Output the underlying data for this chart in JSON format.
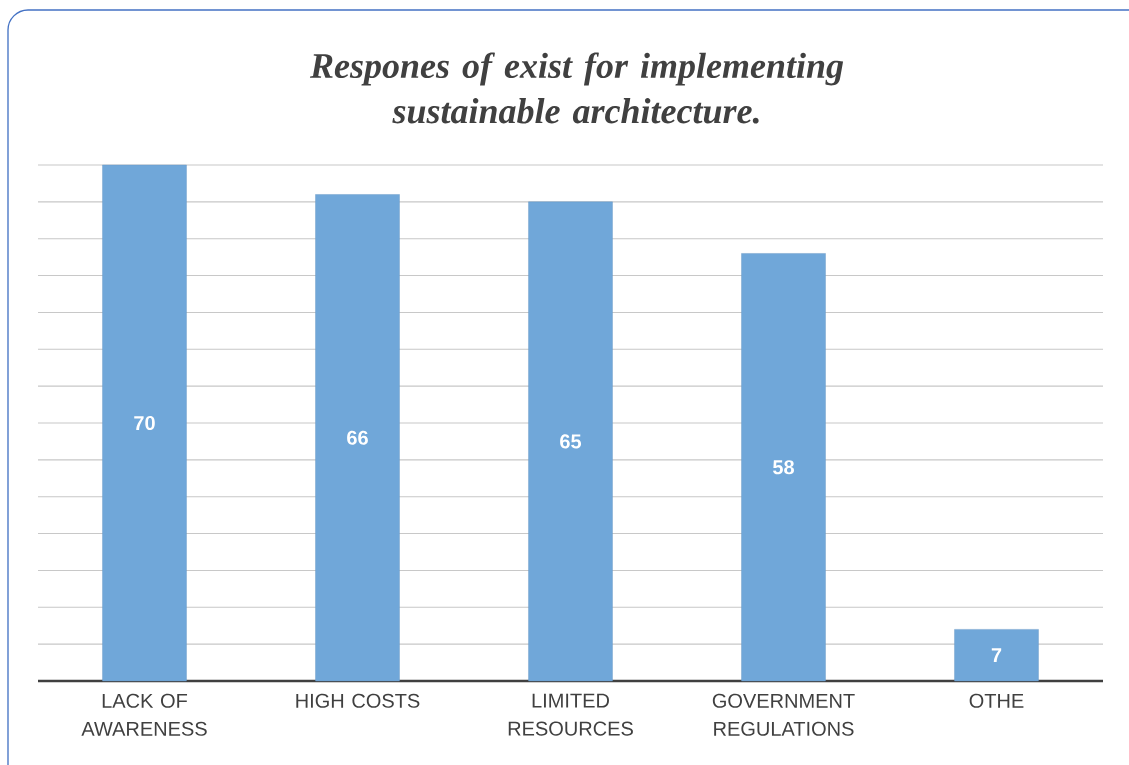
{
  "chart_data": {
    "type": "bar",
    "title": "Respones of exist for implementing sustainable architecture.",
    "categories": [
      "LACK OF AWARENESS",
      "HIGH COSTS",
      "LIMITED RESOURCES",
      "GOVERNMENT REGULATIONS",
      "OTHE"
    ],
    "values": [
      70,
      66,
      65,
      58,
      7
    ],
    "value_labels": [
      "70",
      "66",
      "65",
      "58",
      "7"
    ],
    "color": "#70a7d9",
    "grid": "y",
    "tick_labels": "x"
  }
}
